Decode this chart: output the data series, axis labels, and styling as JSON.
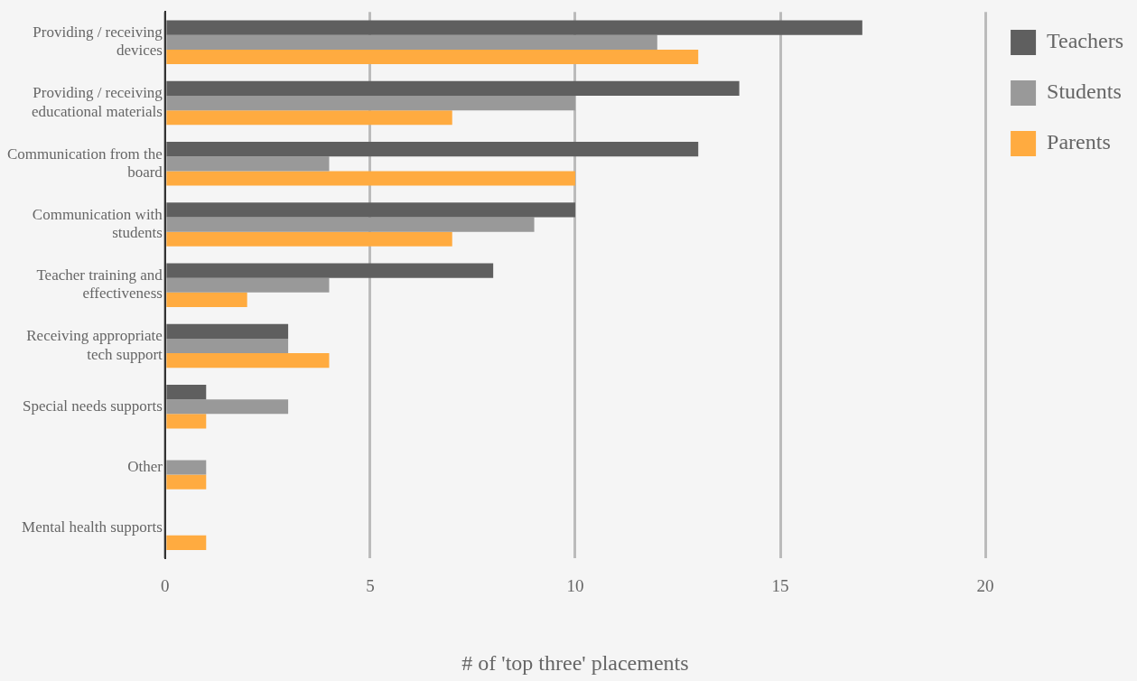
{
  "chart_data": {
    "type": "bar",
    "orientation": "horizontal",
    "xlabel": "# of 'top three' placements",
    "categories": [
      "Providing / receiving devices",
      "Providing / receiving educational materials",
      "Communication from the board",
      "Communication with students",
      "Teacher training and effectiveness",
      "Receiving appropriate tech support",
      "Special needs supports",
      "Other",
      "Mental health supports"
    ],
    "series": [
      {
        "name": "Teachers",
        "color": "#5f5f5f",
        "values": [
          17,
          14,
          13,
          10,
          8,
          3,
          1,
          0,
          0
        ]
      },
      {
        "name": "Students",
        "color": "#999999",
        "values": [
          12,
          10,
          4,
          9,
          4,
          3,
          3,
          1,
          0
        ]
      },
      {
        "name": "Parents",
        "color": "#ffab40",
        "values": [
          13,
          7,
          10,
          7,
          2,
          4,
          1,
          1,
          1
        ]
      }
    ],
    "xlim": [
      0,
      20
    ],
    "xticks": [
      0,
      5,
      10,
      15,
      20
    ],
    "grid": "x",
    "legend": "top right"
  }
}
